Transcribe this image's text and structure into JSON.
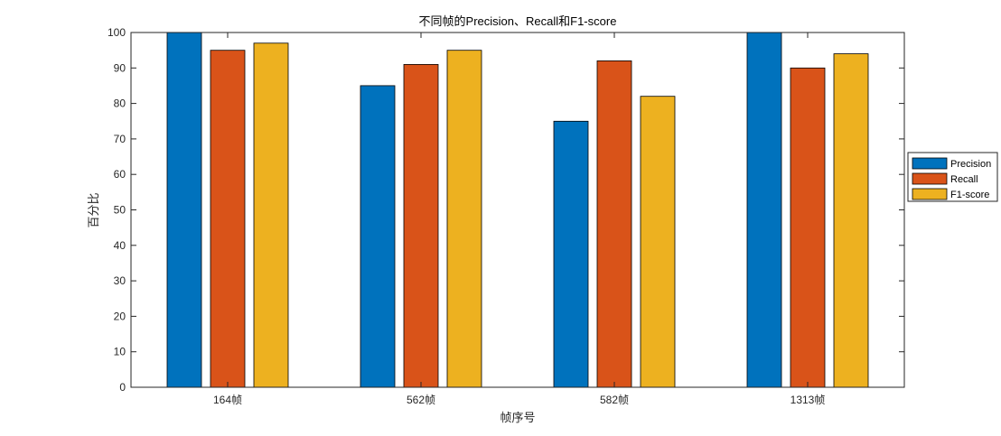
{
  "chart_data": {
    "type": "bar",
    "title": "不同帧的Precision、Recall和F1-score",
    "xlabel": "帧序号",
    "ylabel": "百分比",
    "categories": [
      "164帧",
      "562帧",
      "582帧",
      "1313帧"
    ],
    "ylim": [
      0,
      100
    ],
    "yticks": [
      0,
      10,
      20,
      30,
      40,
      50,
      60,
      70,
      80,
      90,
      100
    ],
    "series": [
      {
        "name": "Precision",
        "color": "#0072BD",
        "values": [
          100,
          85,
          75,
          100
        ]
      },
      {
        "name": "Recall",
        "color": "#D95319",
        "values": [
          95,
          91,
          92,
          90
        ]
      },
      {
        "name": "F1-score",
        "color": "#EDB120",
        "values": [
          97,
          95,
          82,
          94
        ]
      }
    ],
    "grid": false,
    "legend_position": "right"
  }
}
